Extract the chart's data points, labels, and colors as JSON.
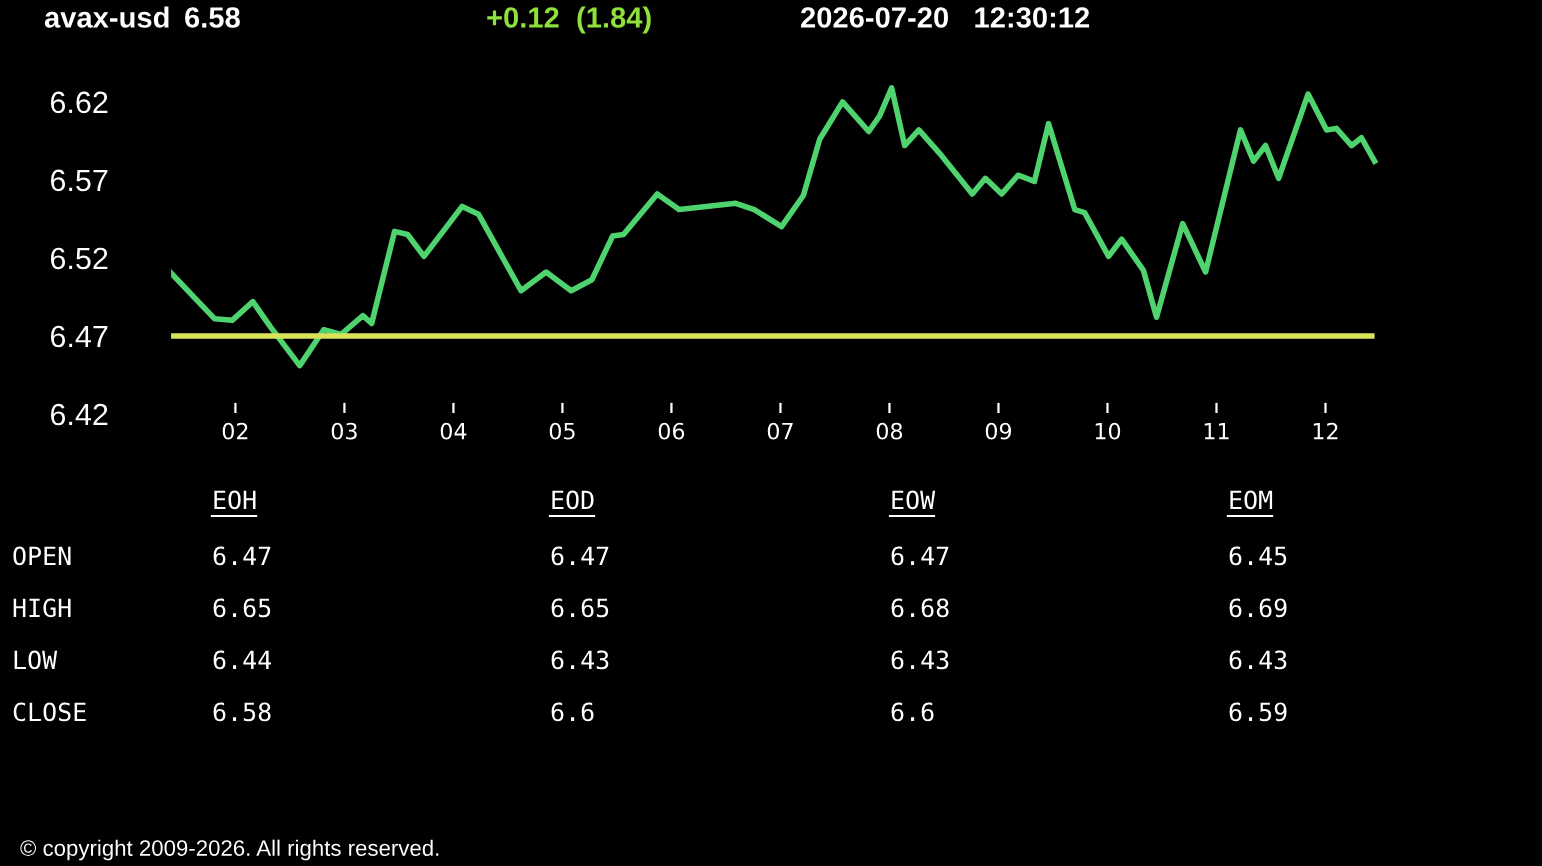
{
  "chart_data": [
    {
      "type": "line",
      "title": "avax-usd",
      "annotations": [
        "6.58",
        "+0.12  (1.84)",
        "2026-07-20   12:30:12"
      ],
      "series": [
        {
          "color": "#4fd36f",
          "x": [
            1.4,
            1.81,
            1.97,
            2.16,
            2.32,
            2.59,
            2.81,
            2.97,
            3.17,
            3.25,
            3.46,
            3.58,
            3.73,
            4.08,
            4.23,
            4.62,
            4.85,
            5.08,
            5.27,
            5.46,
            5.56,
            5.87,
            6.07,
            6.59,
            6.76,
            7.01,
            7.21,
            7.36,
            7.57,
            7.81,
            7.91,
            8.02,
            8.14,
            8.27,
            8.46,
            8.76,
            8.88,
            9.03,
            9.18,
            9.33,
            9.46,
            9.7,
            9.79,
            10.01,
            10.13,
            10.33,
            10.45,
            10.69,
            10.9,
            11.22,
            11.34,
            11.45,
            11.57,
            11.84,
            12.01,
            12.1,
            12.24,
            12.33,
            12.45
          ],
          "values": [
            6.511,
            6.481,
            6.48,
            6.492,
            6.476,
            6.451,
            6.474,
            6.471,
            6.483,
            6.478,
            6.537,
            6.535,
            6.521,
            6.553,
            6.548,
            6.499,
            6.511,
            6.499,
            6.506,
            6.534,
            6.535,
            6.561,
            6.551,
            6.555,
            6.551,
            6.54,
            6.56,
            6.596,
            6.62,
            6.601,
            6.611,
            6.629,
            6.592,
            6.602,
            6.587,
            6.561,
            6.571,
            6.561,
            6.573,
            6.569,
            6.606,
            6.551,
            6.549,
            6.521,
            6.532,
            6.512,
            6.482,
            6.542,
            6.511,
            6.602,
            6.582,
            6.592,
            6.571,
            6.625,
            6.602,
            6.603,
            6.592,
            6.597,
            6.582
          ]
        }
      ],
      "ref_lines": [
        {
          "axis": "y",
          "value": 6.47,
          "color": "#d8e35a"
        }
      ],
      "xlim": [
        1.4,
        12.5
      ],
      "ylim": [
        6.42,
        6.634
      ],
      "xticks": [
        {
          "value": 2,
          "label": "02"
        },
        {
          "value": 3,
          "label": "03"
        },
        {
          "value": 4,
          "label": "04"
        },
        {
          "value": 5,
          "label": "05"
        },
        {
          "value": 6,
          "label": "06"
        },
        {
          "value": 7,
          "label": "07"
        },
        {
          "value": 8,
          "label": "08"
        },
        {
          "value": 9,
          "label": "09"
        },
        {
          "value": 10,
          "label": "10"
        },
        {
          "value": 11,
          "label": "11"
        },
        {
          "value": 12,
          "label": "12"
        }
      ],
      "yticks": [
        6.42,
        6.47,
        6.52,
        6.57,
        6.62
      ],
      "grid": false
    },
    {
      "type": "other",
      "annotations": [
        "EOH",
        "EOD",
        "EOW",
        "EOM",
        "OPEN",
        "6.47",
        "6.47",
        "6.47",
        "6.45",
        "HIGH",
        "6.65",
        "6.65",
        "6.68",
        "6.69",
        "LOW",
        "6.44",
        "6.43",
        "6.43",
        "6.43",
        "CLOSE",
        "6.58",
        "6.6",
        "6.6",
        "6.59",
        "© copyright 2009-2026. All rights reserved."
      ]
    }
  ]
}
